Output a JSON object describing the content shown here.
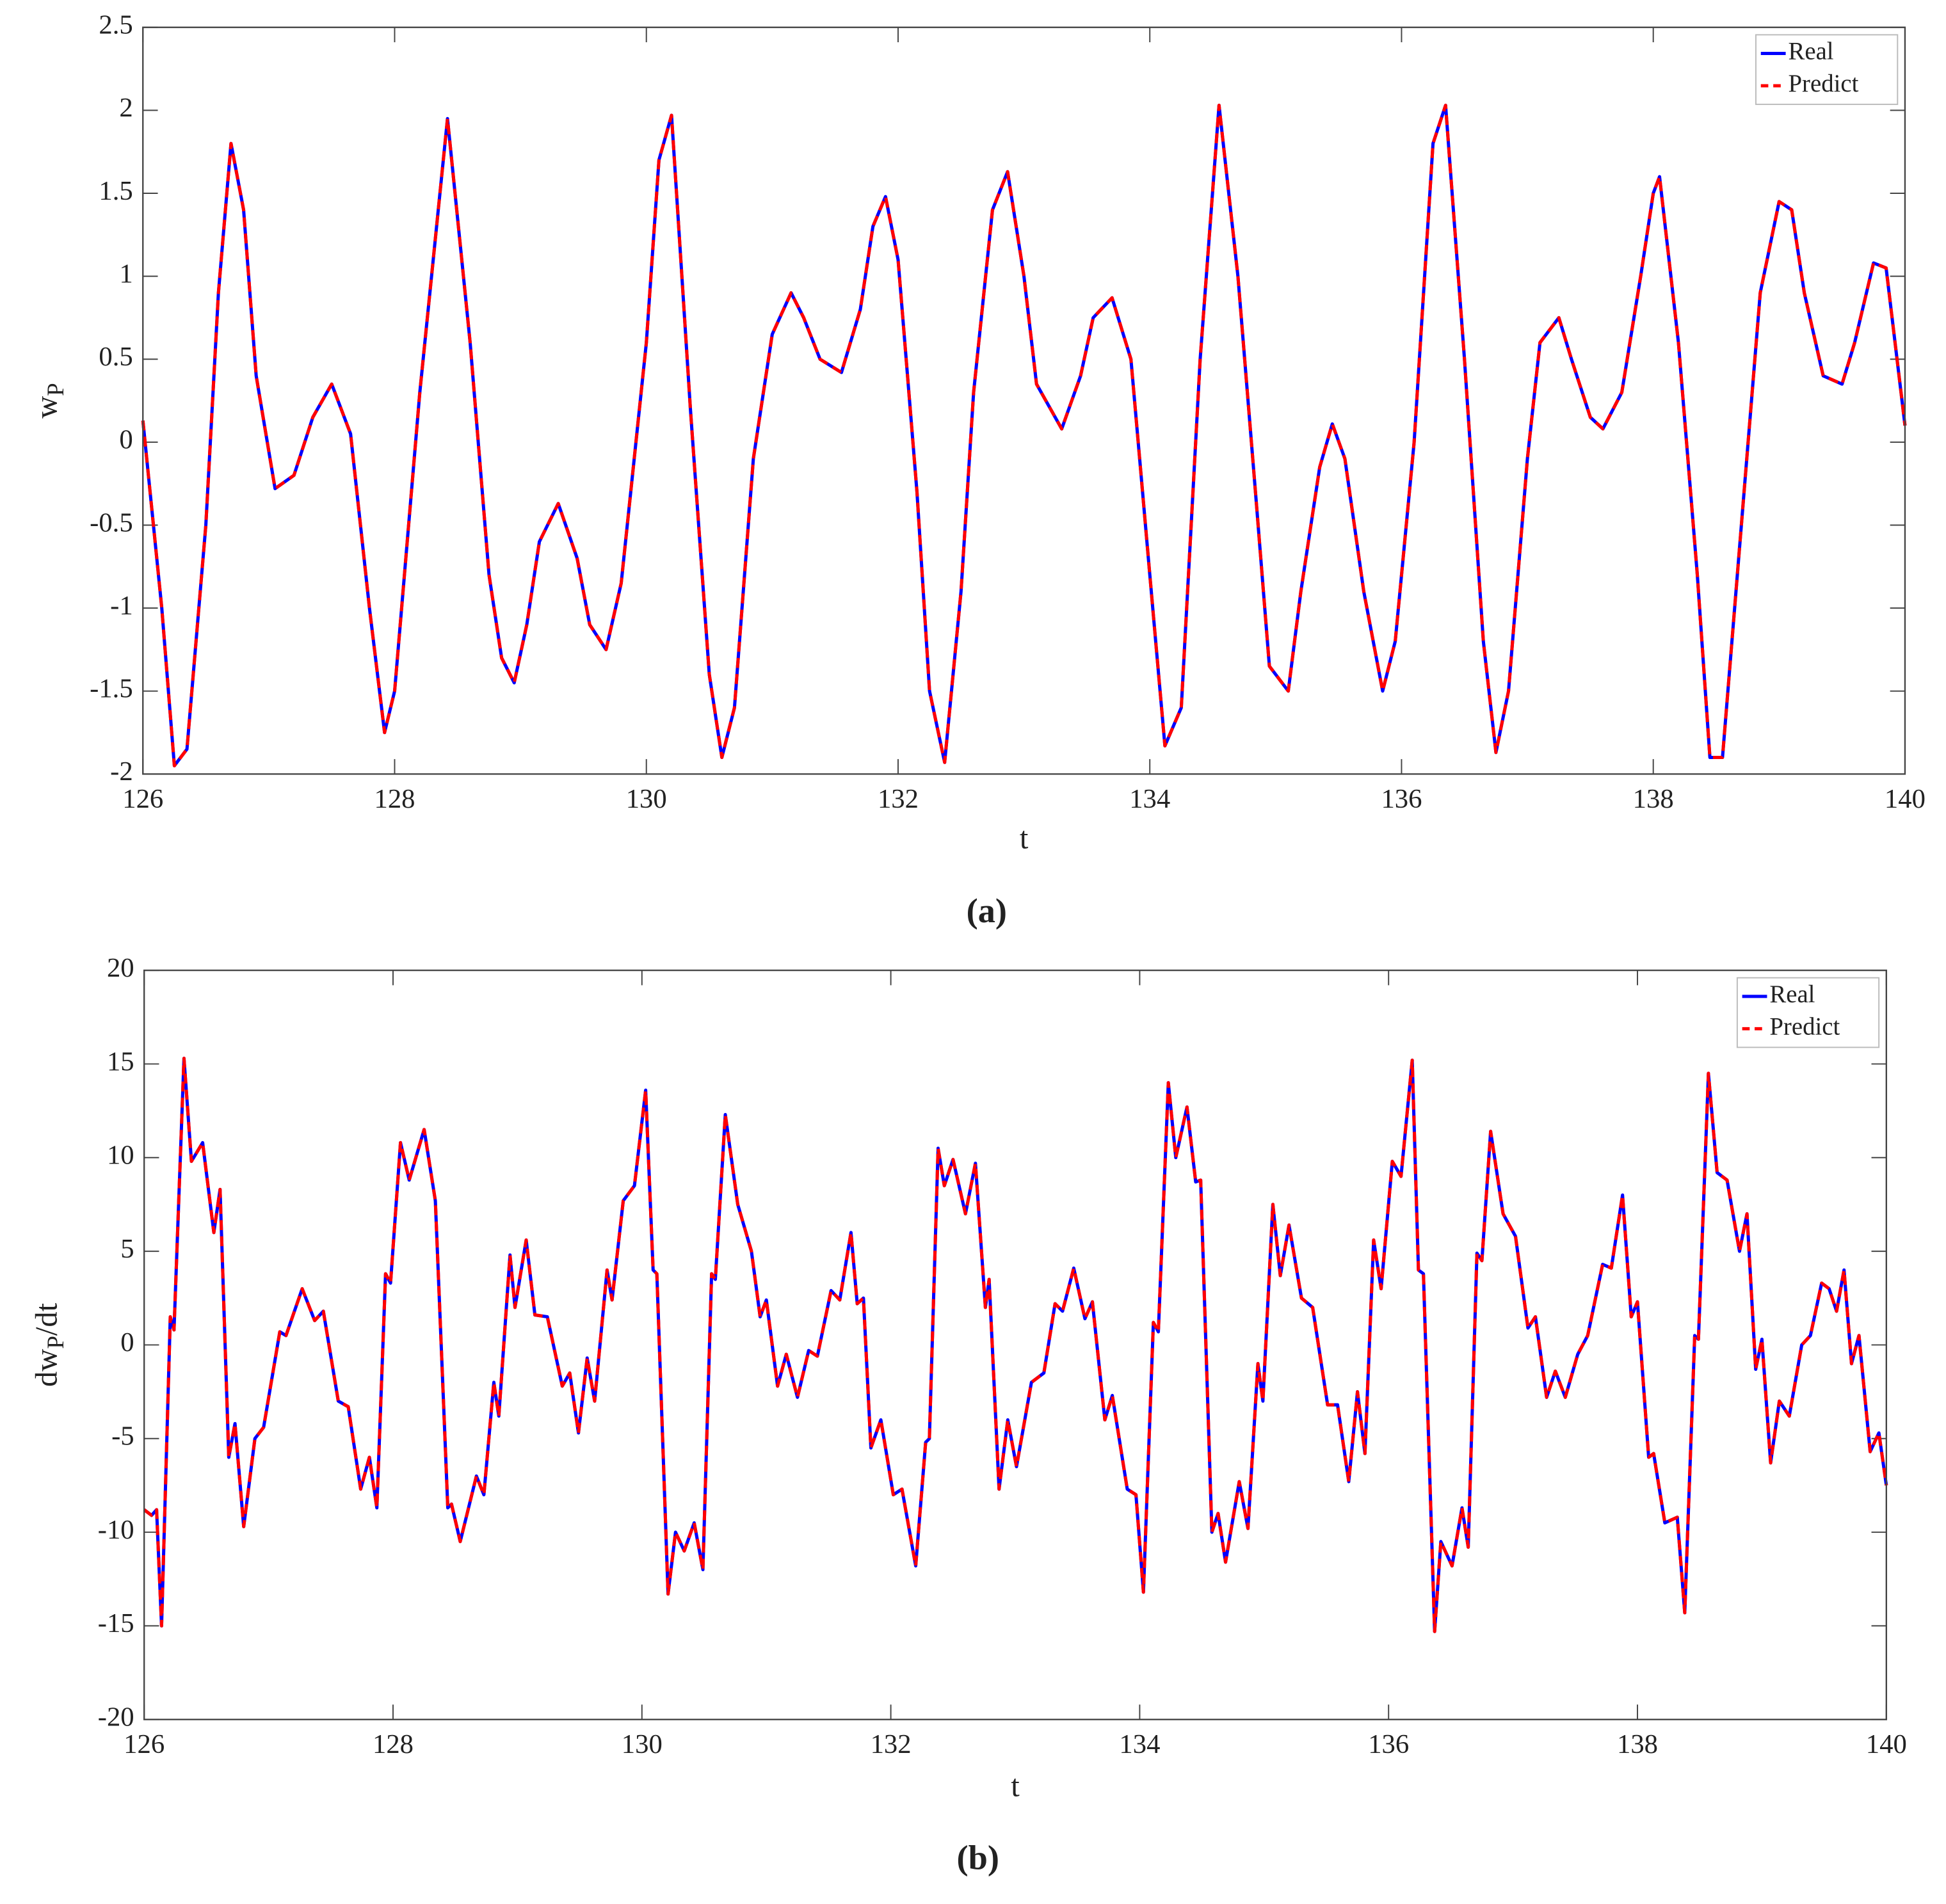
{
  "chart_data": [
    {
      "type": "line",
      "caption": "(a)",
      "xlabel": "t",
      "ylabel": [
        {
          "text": "w"
        },
        {
          "text": "P",
          "sub": true
        }
      ],
      "xlim": [
        126,
        140
      ],
      "xticks": [
        126,
        128,
        130,
        132,
        134,
        136,
        138,
        140
      ],
      "ylim": [
        -2,
        2.5
      ],
      "yticks": [
        -2,
        -1.5,
        -1,
        -0.5,
        0,
        0.5,
        1,
        1.5,
        2,
        2.5
      ],
      "grid": false,
      "legend": "upper right",
      "x": [
        126.0,
        126.15,
        126.25,
        126.35,
        126.5,
        126.6,
        126.7,
        126.8,
        126.9,
        127.05,
        127.2,
        127.35,
        127.5,
        127.65,
        127.8,
        127.92,
        128.0,
        128.2,
        128.42,
        128.6,
        128.75,
        128.85,
        128.95,
        129.05,
        129.15,
        129.3,
        129.45,
        129.55,
        129.68,
        129.8,
        130.0,
        130.1,
        130.2,
        130.35,
        130.5,
        130.6,
        130.7,
        130.85,
        131.0,
        131.15,
        131.25,
        131.38,
        131.55,
        131.7,
        131.8,
        131.9,
        132.0,
        132.15,
        132.25,
        132.37,
        132.5,
        132.6,
        132.75,
        132.87,
        133.0,
        133.1,
        133.3,
        133.45,
        133.55,
        133.7,
        133.85,
        134.0,
        134.12,
        134.25,
        134.4,
        134.55,
        134.7,
        134.85,
        134.95,
        135.1,
        135.2,
        135.35,
        135.45,
        135.55,
        135.7,
        135.85,
        135.95,
        136.1,
        136.25,
        136.35,
        136.5,
        136.65,
        136.75,
        136.85,
        137.0,
        137.1,
        137.25,
        137.35,
        137.5,
        137.6,
        137.75,
        137.9,
        138.0,
        138.05,
        138.2,
        138.35,
        138.45,
        138.55,
        138.7,
        138.85,
        139.0,
        139.1,
        139.2,
        139.35,
        139.5,
        139.6,
        139.75,
        139.85,
        140.0
      ],
      "series": [
        {
          "name": "Real",
          "color": "#0000ff",
          "dash": false,
          "values": [
            0.13,
            -1.0,
            -1.95,
            -1.85,
            -0.5,
            0.9,
            1.8,
            1.4,
            0.4,
            -0.28,
            -0.2,
            0.15,
            0.35,
            0.05,
            -1.0,
            -1.75,
            -1.5,
            0.3,
            1.95,
            0.6,
            -0.8,
            -1.3,
            -1.45,
            -1.1,
            -0.6,
            -0.37,
            -0.7,
            -1.1,
            -1.25,
            -0.85,
            0.6,
            1.7,
            1.97,
            0.2,
            -1.4,
            -1.9,
            -1.6,
            -0.1,
            0.65,
            0.9,
            0.75,
            0.5,
            0.42,
            0.8,
            1.3,
            1.48,
            1.1,
            -0.3,
            -1.5,
            -1.93,
            -0.9,
            0.3,
            1.4,
            1.63,
            1.0,
            0.35,
            0.08,
            0.4,
            0.75,
            0.87,
            0.5,
            -0.8,
            -1.83,
            -1.6,
            0.5,
            2.03,
            1.0,
            -0.4,
            -1.35,
            -1.5,
            -0.9,
            -0.15,
            0.11,
            -0.1,
            -0.9,
            -1.5,
            -1.2,
            0.0,
            1.8,
            2.03,
            0.5,
            -1.2,
            -1.87,
            -1.5,
            -0.1,
            0.6,
            0.75,
            0.5,
            0.15,
            0.08,
            0.3,
            1.0,
            1.5,
            1.6,
            0.6,
            -0.8,
            -1.9,
            -1.9,
            -0.5,
            0.9,
            1.45,
            1.4,
            0.9,
            0.4,
            0.35,
            0.6,
            1.08,
            1.05,
            0.1
          ]
        },
        {
          "name": "Predict",
          "color": "#ff0000",
          "dash": true,
          "values": [
            0.13,
            -1.0,
            -1.95,
            -1.85,
            -0.5,
            0.9,
            1.8,
            1.4,
            0.4,
            -0.28,
            -0.2,
            0.15,
            0.35,
            0.05,
            -1.0,
            -1.75,
            -1.5,
            0.3,
            1.95,
            0.6,
            -0.8,
            -1.3,
            -1.45,
            -1.1,
            -0.6,
            -0.37,
            -0.7,
            -1.1,
            -1.25,
            -0.85,
            0.6,
            1.7,
            1.97,
            0.2,
            -1.4,
            -1.9,
            -1.6,
            -0.1,
            0.65,
            0.9,
            0.75,
            0.5,
            0.42,
            0.8,
            1.3,
            1.48,
            1.1,
            -0.3,
            -1.5,
            -1.93,
            -0.9,
            0.3,
            1.4,
            1.63,
            1.0,
            0.35,
            0.08,
            0.4,
            0.75,
            0.87,
            0.5,
            -0.8,
            -1.83,
            -1.6,
            0.5,
            2.03,
            1.0,
            -0.4,
            -1.35,
            -1.5,
            -0.9,
            -0.15,
            0.11,
            -0.1,
            -0.9,
            -1.5,
            -1.2,
            0.0,
            1.8,
            2.03,
            0.5,
            -1.2,
            -1.87,
            -1.5,
            -0.1,
            0.6,
            0.75,
            0.5,
            0.15,
            0.08,
            0.3,
            1.0,
            1.5,
            1.6,
            0.6,
            -0.8,
            -1.9,
            -1.9,
            -0.5,
            0.9,
            1.45,
            1.4,
            0.9,
            0.4,
            0.35,
            0.6,
            1.08,
            1.05,
            0.1
          ]
        }
      ]
    },
    {
      "type": "line",
      "caption": "(b)",
      "xlabel": "t",
      "ylabel": [
        {
          "text": "dw"
        },
        {
          "text": "P",
          "sub": true
        },
        {
          "text": "/dt"
        }
      ],
      "xlim": [
        126,
        140
      ],
      "xticks": [
        126,
        128,
        130,
        132,
        134,
        136,
        138,
        140
      ],
      "ylim": [
        -20,
        20
      ],
      "yticks": [
        -20,
        -15,
        -10,
        -5,
        0,
        5,
        10,
        15,
        20
      ],
      "grid": false,
      "legend": "upper right",
      "x": [
        126.0,
        126.06,
        126.1,
        126.14,
        126.21,
        126.24,
        126.32,
        126.38,
        126.47,
        126.56,
        126.61,
        126.68,
        126.73,
        126.8,
        126.89,
        126.96,
        127.09,
        127.14,
        127.27,
        127.37,
        127.44,
        127.56,
        127.64,
        127.74,
        127.81,
        127.87,
        127.94,
        127.98,
        128.06,
        128.13,
        128.25,
        128.34,
        128.44,
        128.47,
        128.54,
        128.67,
        128.73,
        128.81,
        128.85,
        128.94,
        128.98,
        129.07,
        129.14,
        129.24,
        129.36,
        129.42,
        129.49,
        129.56,
        129.62,
        129.72,
        129.76,
        129.85,
        129.94,
        130.03,
        130.09,
        130.12,
        130.21,
        130.27,
        130.34,
        130.42,
        130.49,
        130.56,
        130.59,
        130.67,
        130.77,
        130.88,
        130.95,
        131.0,
        131.09,
        131.16,
        131.25,
        131.34,
        131.41,
        131.52,
        131.59,
        131.68,
        131.73,
        131.78,
        131.84,
        131.92,
        132.02,
        132.09,
        132.2,
        132.28,
        132.31,
        132.38,
        132.43,
        132.5,
        132.6,
        132.68,
        132.76,
        132.79,
        132.87,
        132.94,
        133.01,
        133.13,
        133.23,
        133.32,
        133.38,
        133.47,
        133.56,
        133.62,
        133.72,
        133.78,
        133.9,
        133.97,
        134.03,
        134.11,
        134.15,
        134.23,
        134.29,
        134.38,
        134.45,
        134.49,
        134.58,
        134.63,
        134.69,
        134.8,
        134.87,
        134.95,
        134.99,
        135.07,
        135.13,
        135.2,
        135.3,
        135.39,
        135.51,
        135.59,
        135.68,
        135.75,
        135.81,
        135.88,
        135.94,
        136.03,
        136.1,
        136.19,
        136.24,
        136.28,
        136.37,
        136.42,
        136.51,
        136.59,
        136.64,
        136.71,
        136.75,
        136.82,
        136.92,
        137.02,
        137.12,
        137.18,
        137.27,
        137.34,
        137.42,
        137.52,
        137.6,
        137.72,
        137.79,
        137.88,
        137.95,
        138.0,
        138.09,
        138.13,
        138.22,
        138.32,
        138.38,
        138.46,
        138.49,
        138.57,
        138.64,
        138.72,
        138.82,
        138.88,
        138.95,
        139.0,
        139.07,
        139.14,
        139.22,
        139.32,
        139.39,
        139.48,
        139.54,
        139.6,
        139.66,
        139.72,
        139.78,
        139.87,
        139.94,
        140.0
      ],
      "series": [
        {
          "name": "Real",
          "color": "#0000ff",
          "dash": false,
          "values": [
            -8.8,
            -9.1,
            -8.8,
            -15,
            1.5,
            0.8,
            15.3,
            9.8,
            10.8,
            6,
            8.3,
            -6,
            -4.2,
            -9.7,
            -5,
            -4.4,
            0.7,
            0.5,
            3,
            1.3,
            1.8,
            -3,
            -3.3,
            -7.7,
            -6,
            -8.7,
            3.8,
            3.3,
            10.8,
            8.8,
            11.5,
            7.7,
            -8.7,
            -8.5,
            -10.5,
            -7,
            -8,
            -2,
            -3.8,
            4.8,
            2,
            5.6,
            1.6,
            1.5,
            -2.2,
            -1.5,
            -4.7,
            -0.7,
            -3,
            4,
            2.4,
            7.7,
            8.5,
            13.6,
            4,
            3.8,
            -13.3,
            -10,
            -11,
            -9.5,
            -12,
            3.8,
            3.5,
            12.3,
            7.5,
            5,
            1.5,
            2.4,
            -2.2,
            -0.5,
            -2.8,
            -0.3,
            -0.6,
            2.9,
            2.4,
            6,
            2.2,
            2.5,
            -5.5,
            -4,
            -8,
            -7.7,
            -11.8,
            -5.2,
            -5,
            10.5,
            8.5,
            9.9,
            7,
            9.7,
            2,
            3.5,
            -7.7,
            -4,
            -6.5,
            -2,
            -1.5,
            2.2,
            1.8,
            4.1,
            1.4,
            2.3,
            -4,
            -2.7,
            -7.7,
            -8,
            -13.2,
            1.2,
            0.7,
            14,
            10,
            12.7,
            8.7,
            8.8,
            -10,
            -9,
            -11.6,
            -7.3,
            -9.8,
            -1,
            -3,
            7.5,
            3.7,
            6.4,
            2.5,
            2,
            -3.2,
            -3.2,
            -7.3,
            -2.5,
            -5.8,
            5.6,
            3,
            9.8,
            9,
            15.2,
            4,
            3.8,
            -15.3,
            -10.5,
            -11.8,
            -8.7,
            -10.8,
            4.9,
            4.5,
            11.4,
            7,
            5.8,
            0.9,
            1.5,
            -2.8,
            -1.4,
            -2.8,
            -0.5,
            0.5,
            4.3,
            4.1,
            8,
            1.5,
            2.3,
            -6,
            -5.8,
            -9.5,
            -9.2,
            -14.3,
            0.5,
            0.3,
            14.5,
            9.2,
            8.8,
            5,
            7,
            -1.3,
            0.3,
            -6.3,
            -3,
            -3.8,
            0,
            0.5,
            3.3,
            3,
            1.8,
            4,
            -1,
            0.5,
            -5.7,
            -4.7,
            -7.5
          ]
        },
        {
          "name": "Predict",
          "color": "#ff0000",
          "dash": true,
          "values": [
            -8.8,
            -9.1,
            -8.8,
            -15,
            1.5,
            0.8,
            15.3,
            9.8,
            10.8,
            6,
            8.3,
            -6,
            -4.2,
            -9.7,
            -5,
            -4.4,
            0.7,
            0.5,
            3,
            1.3,
            1.8,
            -3,
            -3.3,
            -7.7,
            -6,
            -8.7,
            3.8,
            3.3,
            10.8,
            8.8,
            11.5,
            7.7,
            -8.7,
            -8.5,
            -10.5,
            -7,
            -8,
            -2,
            -3.8,
            4.8,
            2,
            5.6,
            1.6,
            1.5,
            -2.2,
            -1.5,
            -4.7,
            -0.7,
            -3,
            4,
            2.4,
            7.7,
            8.5,
            13.6,
            4,
            3.8,
            -13.3,
            -10,
            -11,
            -9.5,
            -12,
            3.8,
            3.5,
            12.3,
            7.5,
            5,
            1.5,
            2.4,
            -2.2,
            -0.5,
            -2.8,
            -0.3,
            -0.6,
            2.9,
            2.4,
            6,
            2.2,
            2.5,
            -5.5,
            -4,
            -8,
            -7.7,
            -11.8,
            -5.2,
            -5,
            10.5,
            8.5,
            9.9,
            7,
            9.7,
            2,
            3.5,
            -7.7,
            -4,
            -6.5,
            -2,
            -1.5,
            2.2,
            1.8,
            4.1,
            1.4,
            2.3,
            -4,
            -2.7,
            -7.7,
            -8,
            -13.2,
            1.2,
            0.7,
            14,
            10,
            12.7,
            8.7,
            8.8,
            -10,
            -9,
            -11.6,
            -7.3,
            -9.8,
            -1,
            -3,
            7.5,
            3.7,
            6.4,
            2.5,
            2,
            -3.2,
            -3.2,
            -7.3,
            -2.5,
            -5.8,
            5.6,
            3,
            9.8,
            9,
            15.2,
            4,
            3.8,
            -15.3,
            -10.5,
            -11.8,
            -8.7,
            -10.8,
            4.9,
            4.5,
            11.4,
            7,
            5.8,
            0.9,
            1.5,
            -2.8,
            -1.4,
            -2.8,
            -0.5,
            0.5,
            4.3,
            4.1,
            8,
            1.5,
            2.3,
            -6,
            -5.8,
            -9.5,
            -9.2,
            -14.3,
            0.5,
            0.3,
            14.5,
            9.2,
            8.8,
            5,
            7,
            -1.3,
            0.3,
            -6.3,
            -3,
            -3.8,
            0,
            0.5,
            3.3,
            3,
            1.8,
            4,
            -1,
            0.5,
            -5.7,
            -4.7,
            -7.5
          ]
        }
      ]
    }
  ]
}
